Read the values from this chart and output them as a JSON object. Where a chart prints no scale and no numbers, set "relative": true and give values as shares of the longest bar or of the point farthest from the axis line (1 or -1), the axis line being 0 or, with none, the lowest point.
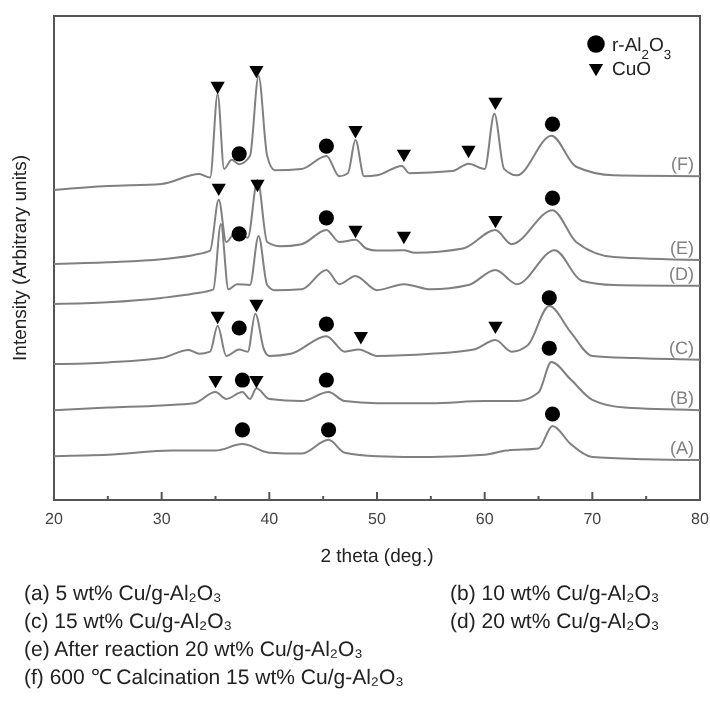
{
  "chart_data": {
    "type": "line",
    "relative": true,
    "xlabel": "2 theta (deg.)",
    "ylabel": "Intensity (Arbitrary units)",
    "xlim": [
      20,
      80
    ],
    "xticks": [
      20,
      {
        "value": 25,
        "label": null
      },
      30,
      {
        "value": 35,
        "label": null
      },
      40,
      {
        "value": 45,
        "label": null
      },
      50,
      {
        "value": 55,
        "label": null
      },
      60,
      {
        "value": 65,
        "label": null
      },
      70,
      {
        "value": 75,
        "label": null
      },
      80
    ],
    "legend": "top right",
    "grid": false,
    "series": [
      {
        "name": "(A)",
        "color": "#808080",
        "x": [
          20,
          25,
          31,
          35,
          37.5,
          40,
          43,
          45.5,
          47,
          50,
          55,
          60,
          62,
          65,
          66.3,
          68,
          70,
          75,
          80
        ],
        "values": [
          0.102,
          0.105,
          0.115,
          0.115,
          0.13,
          0.11,
          0.108,
          0.14,
          0.11,
          0.102,
          0.1,
          0.105,
          0.115,
          0.12,
          0.172,
          0.13,
          0.1,
          0.095,
          0.093
        ]
      },
      {
        "name": "(B)",
        "color": "#808080",
        "x": [
          20,
          25,
          30,
          33,
          35,
          36,
          37.5,
          38.2,
          38.8,
          40,
          43,
          45.5,
          47,
          50,
          55,
          60,
          63,
          65,
          66.2,
          68,
          70,
          73,
          80
        ],
        "values": [
          0.209,
          0.215,
          0.22,
          0.225,
          0.251,
          0.235,
          0.251,
          0.235,
          0.26,
          0.235,
          0.23,
          0.251,
          0.23,
          0.225,
          0.225,
          0.23,
          0.23,
          0.25,
          0.321,
          0.28,
          0.233,
          0.215,
          0.209
        ]
      },
      {
        "name": "(C)",
        "color": "#808080",
        "x": [
          20,
          25,
          30,
          32.5,
          33.5,
          34.5,
          35.2,
          36,
          37.2,
          38,
          38.7,
          39.5,
          40,
          42,
          45.3,
          47,
          48.3,
          50,
          55,
          59,
          61,
          62.5,
          64,
          66,
          68,
          70,
          74,
          80
        ],
        "values": [
          0.316,
          0.32,
          0.33,
          0.349,
          0.34,
          0.345,
          0.405,
          0.335,
          0.35,
          0.345,
          0.433,
          0.35,
          0.335,
          0.34,
          0.381,
          0.345,
          0.35,
          0.335,
          0.34,
          0.35,
          0.372,
          0.345,
          0.36,
          0.451,
          0.39,
          0.335,
          0.33,
          0.326
        ]
      },
      {
        "name": "(D)",
        "color": "#808080",
        "x": [
          20,
          25,
          30,
          33,
          34.8,
          35.5,
          36.2,
          37,
          38.2,
          39,
          39.8,
          40.5,
          43,
          45.3,
          46.5,
          48,
          50,
          52.5,
          55,
          58.5,
          61,
          63,
          66.5,
          69,
          72,
          80
        ],
        "values": [
          0.456,
          0.46,
          0.47,
          0.48,
          0.49,
          0.642,
          0.49,
          0.502,
          0.5,
          0.614,
          0.5,
          0.488,
          0.49,
          0.535,
          0.502,
          0.521,
          0.488,
          0.502,
          0.49,
          0.5,
          0.535,
          0.502,
          0.581,
          0.51,
          0.5,
          0.498
        ]
      },
      {
        "name": "(E)",
        "color": "#808080",
        "x": [
          20,
          25,
          30,
          33,
          34.5,
          35.3,
          36,
          37,
          38,
          38.9,
          39.8,
          41,
          43,
          45.3,
          46.5,
          48,
          49,
          50,
          52.5,
          53.5,
          58,
          61,
          62.5,
          66.3,
          68.5,
          72,
          80
        ],
        "values": [
          0.549,
          0.553,
          0.56,
          0.57,
          0.58,
          0.698,
          0.6,
          0.628,
          0.61,
          0.744,
          0.6,
          0.59,
          0.595,
          0.628,
          0.6,
          0.605,
          0.585,
          0.58,
          0.581,
          0.575,
          0.585,
          0.628,
          0.595,
          0.674,
          0.6,
          0.565,
          0.558
        ]
      },
      {
        "name": "(F)",
        "color": "#808080",
        "x": [
          20,
          25,
          30,
          33.5,
          34.5,
          35.2,
          35.8,
          36.5,
          37.2,
          38.2,
          39,
          39.8,
          40.5,
          43,
          45.3,
          46.5,
          47.3,
          48,
          48.8,
          50,
          52.3,
          53,
          57,
          58.5,
          60,
          60.9,
          61.8,
          63,
          66.2,
          68.5,
          72,
          80
        ],
        "values": [
          0.721,
          0.73,
          0.735,
          0.758,
          0.75,
          0.944,
          0.77,
          0.791,
          0.781,
          0.8,
          0.986,
          0.8,
          0.767,
          0.77,
          0.8,
          0.753,
          0.76,
          0.837,
          0.753,
          0.755,
          0.777,
          0.76,
          0.765,
          0.782,
          0.77,
          0.898,
          0.77,
          0.755,
          0.847,
          0.775,
          0.755,
          0.753
        ]
      },
      {
        "name": "r-Al$_{2}$O$_{3}$",
        "type": "scatter",
        "marker": "circle",
        "color": "#000000",
        "x": [
          37.5,
          45.5,
          66.3,
          37.5,
          45.3,
          66,
          37.2,
          45.3,
          66,
          37.2,
          45.3,
          66.3,
          37.2,
          45.3,
          66.3
        ],
        "values": [
          0.163,
          0.163,
          0.2,
          0.279,
          0.279,
          0.353,
          0.4,
          0.409,
          0.47,
          0.619,
          0.656,
          0.702,
          0.805,
          0.823,
          0.874
        ]
      },
      {
        "name": "CuO",
        "type": "scatter",
        "marker": "triangle",
        "color": "#000000",
        "x": [
          35,
          38.8,
          35.2,
          38.8,
          48.5,
          61,
          35.3,
          38.9,
          48,
          52.5,
          61,
          35.2,
          38.8,
          48,
          52.5,
          58.5,
          61
        ],
        "values": [
          0.279,
          0.279,
          0.428,
          0.456,
          0.381,
          0.405,
          0.726,
          0.735,
          0.628,
          0.614,
          0.651,
          0.963,
          1.0,
          0.86,
          0.805,
          0.814,
          0.926
        ]
      }
    ],
    "annotations": [
      "(a) 5 wt% Cu/g-Al₂O₃",
      "(b) 10 wt% Cu/g-Al₂O₃",
      "(c) 15 wt% Cu/g-Al₂O₃",
      "(d) 20 wt% Cu/g-Al₂O₃",
      "(e) After reaction 20 wt% Cu/g-Al₂O₃",
      "(f) 600 ℃ Calcination 15 wt% Cu/g-Al₂O₃"
    ]
  }
}
